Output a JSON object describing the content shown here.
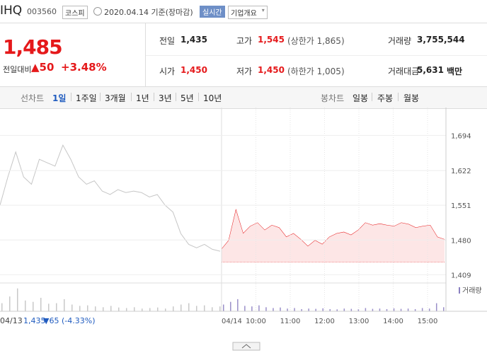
{
  "header": {
    "name": "IHQ",
    "code": "003560",
    "market": "코스피",
    "date": "2020.04.14 기준(장마감)",
    "realtime_button": "실시간",
    "overview_button": "기업개요"
  },
  "quote": {
    "price": "1,485",
    "change_label": "전일대비",
    "change": "▲50",
    "change_rate": "+3.48%"
  },
  "stats": [
    {
      "label": "전일",
      "value": "1,435"
    },
    {
      "label": "고가",
      "value": "1,545",
      "note": "(상한가 1,865)"
    },
    {
      "label": "거래량",
      "value": "3,755,544"
    },
    {
      "label": "시가",
      "value": "1,450"
    },
    {
      "label": "저가",
      "value": "1,450",
      "note": "(하한가 1,005)"
    },
    {
      "label": "거래대금",
      "value": "5,631",
      "unit": "백만"
    }
  ],
  "tabs": {
    "line_label": "선차트",
    "line_periods": [
      "1일",
      "1주일",
      "3개월",
      "1년",
      "3년",
      "5년",
      "10년"
    ],
    "candle_label": "봉차트",
    "candle_periods": [
      "일봉",
      "주봉",
      "월봉"
    ]
  },
  "price_chart": {
    "ylim": [
      1395,
      1735
    ],
    "yticks": [
      {
        "value": 1694,
        "label": "1,694"
      },
      {
        "value": 1622,
        "label": "1,622"
      },
      {
        "value": 1551,
        "label": "1,551"
      },
      {
        "value": 1480,
        "label": "1,480"
      },
      {
        "value": 1409,
        "label": "1,409"
      }
    ],
    "reference_value": 1435,
    "previous_day": [
      1551,
      1609,
      1660,
      1609,
      1594,
      1645,
      1638,
      1631,
      1674,
      1645,
      1609,
      1594,
      1601,
      1580,
      1573,
      1583,
      1577,
      1580,
      1577,
      1568,
      1573,
      1551,
      1537,
      1493,
      1471,
      1464,
      1471,
      1461,
      1457
    ],
    "today": [
      1461,
      1479,
      1541,
      1493,
      1508,
      1515,
      1500,
      1510,
      1505,
      1486,
      1493,
      1481,
      1467,
      1479,
      1471,
      1486,
      1493,
      1496,
      1490,
      1500,
      1515,
      1510,
      1513,
      1510,
      1508,
      1515,
      1512,
      1505,
      1508,
      1510,
      1486,
      1481
    ],
    "xticks": [
      "04/14",
      "10:00",
      "11:00",
      "12:00",
      "13:00",
      "14:00",
      "15:00"
    ],
    "volume_label": "거래량",
    "volume_ylim": [
      0,
      100
    ],
    "volume_previous": [
      30,
      55,
      85,
      40,
      35,
      50,
      28,
      30,
      45,
      25,
      20,
      22,
      18,
      15,
      20,
      14,
      12,
      15,
      10,
      12,
      14,
      10,
      18,
      25,
      30,
      20,
      22,
      15,
      18
    ],
    "volume_today": [
      25,
      35,
      45,
      20,
      18,
      22,
      15,
      12,
      14,
      10,
      12,
      8,
      10,
      9,
      11,
      8,
      7,
      10,
      9,
      8,
      12,
      9,
      10,
      8,
      11,
      9,
      10,
      8,
      12,
      10,
      30,
      15
    ]
  },
  "footer": {
    "date": "04/13",
    "close": "1,435",
    "change": "▼65",
    "change_rate": "(-4.33%)"
  }
}
